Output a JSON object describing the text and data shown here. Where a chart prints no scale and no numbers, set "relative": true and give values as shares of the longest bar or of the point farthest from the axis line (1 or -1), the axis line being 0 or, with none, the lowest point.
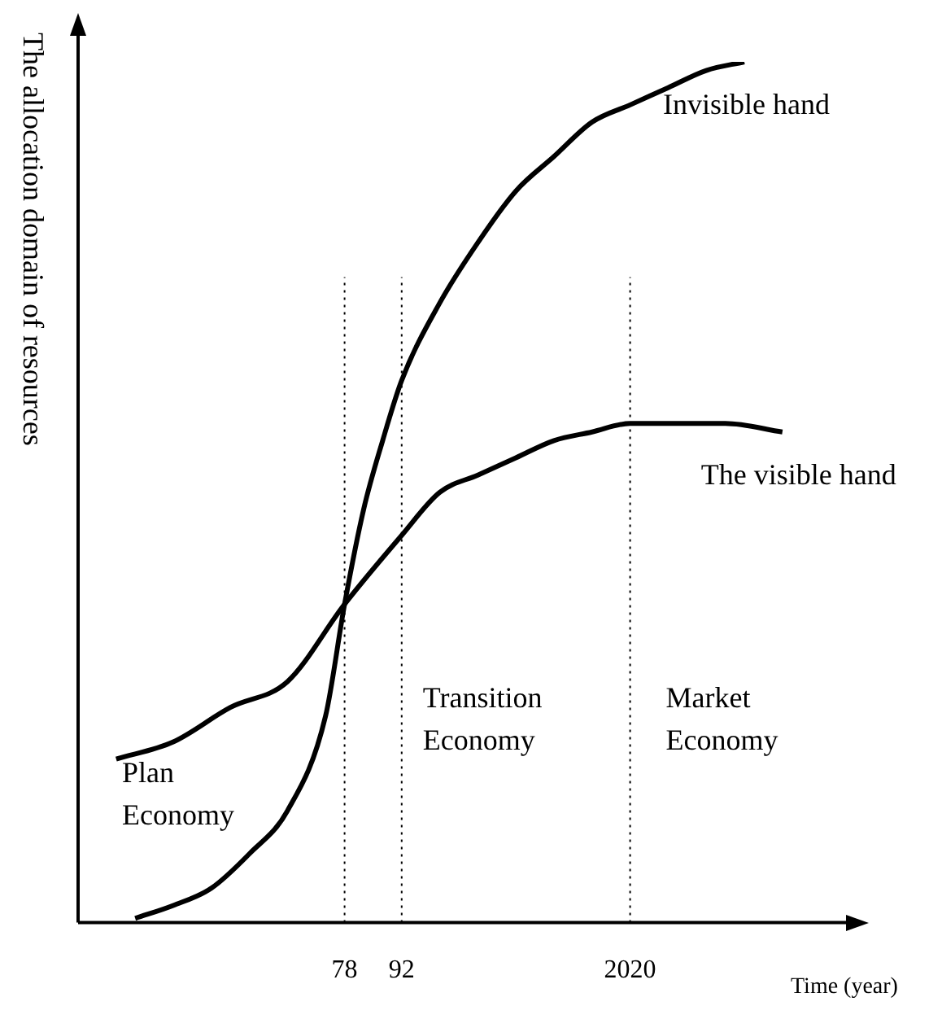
{
  "chart_data": {
    "type": "line",
    "relative": true,
    "xlabel": "Time (year)",
    "ylabel": "The allocation domain of resources",
    "categories": [
      null,
      null,
      null,
      null,
      null,
      null,
      null,
      null,
      null,
      null,
      null,
      null,
      null,
      null,
      "78",
      null,
      null,
      "92",
      null,
      null,
      null,
      null,
      null,
      null,
      null,
      null,
      null,
      null,
      null,
      "2020",
      null,
      null,
      null,
      null,
      null,
      null,
      null,
      null,
      null,
      null,
      null
    ],
    "series": [
      {
        "name": "Invisible hand",
        "color": "#000000",
        "values": [
          null,
          null,
          null,
          0.005,
          null,
          0.02,
          null,
          0.04,
          null,
          0.08,
          null,
          0.13,
          null,
          0.24,
          0.37,
          0.48,
          0.56,
          0.63,
          null,
          0.72,
          null,
          0.79,
          null,
          0.85,
          null,
          0.89,
          null,
          0.93,
          null,
          0.95,
          null,
          0.97,
          null,
          0.99,
          null,
          1.0,
          null,
          null,
          null,
          null,
          null
        ]
      },
      {
        "name": "The visible hand",
        "color": "#000000",
        "values": [
          null,
          null,
          0.19,
          null,
          null,
          0.21,
          null,
          null,
          0.25,
          null,
          null,
          0.28,
          null,
          null,
          0.37,
          null,
          null,
          0.45,
          null,
          0.5,
          null,
          0.52,
          null,
          0.54,
          null,
          0.56,
          null,
          0.57,
          null,
          0.58,
          null,
          0.58,
          null,
          null,
          0.58,
          null,
          null,
          0.57,
          null,
          null,
          null
        ]
      }
    ],
    "ref_lines": [
      {
        "axis": "x",
        "value": "78",
        "line_style": "dotted"
      },
      {
        "axis": "x",
        "value": "92",
        "line_style": "dotted"
      },
      {
        "axis": "x",
        "value": "2020",
        "line_style": "dotted"
      }
    ],
    "annotations": [
      "Plan Economy",
      "Transition Economy",
      "Market Economy"
    ],
    "grid": false,
    "legend": false,
    "marker": "none",
    "line_style": "solid"
  }
}
